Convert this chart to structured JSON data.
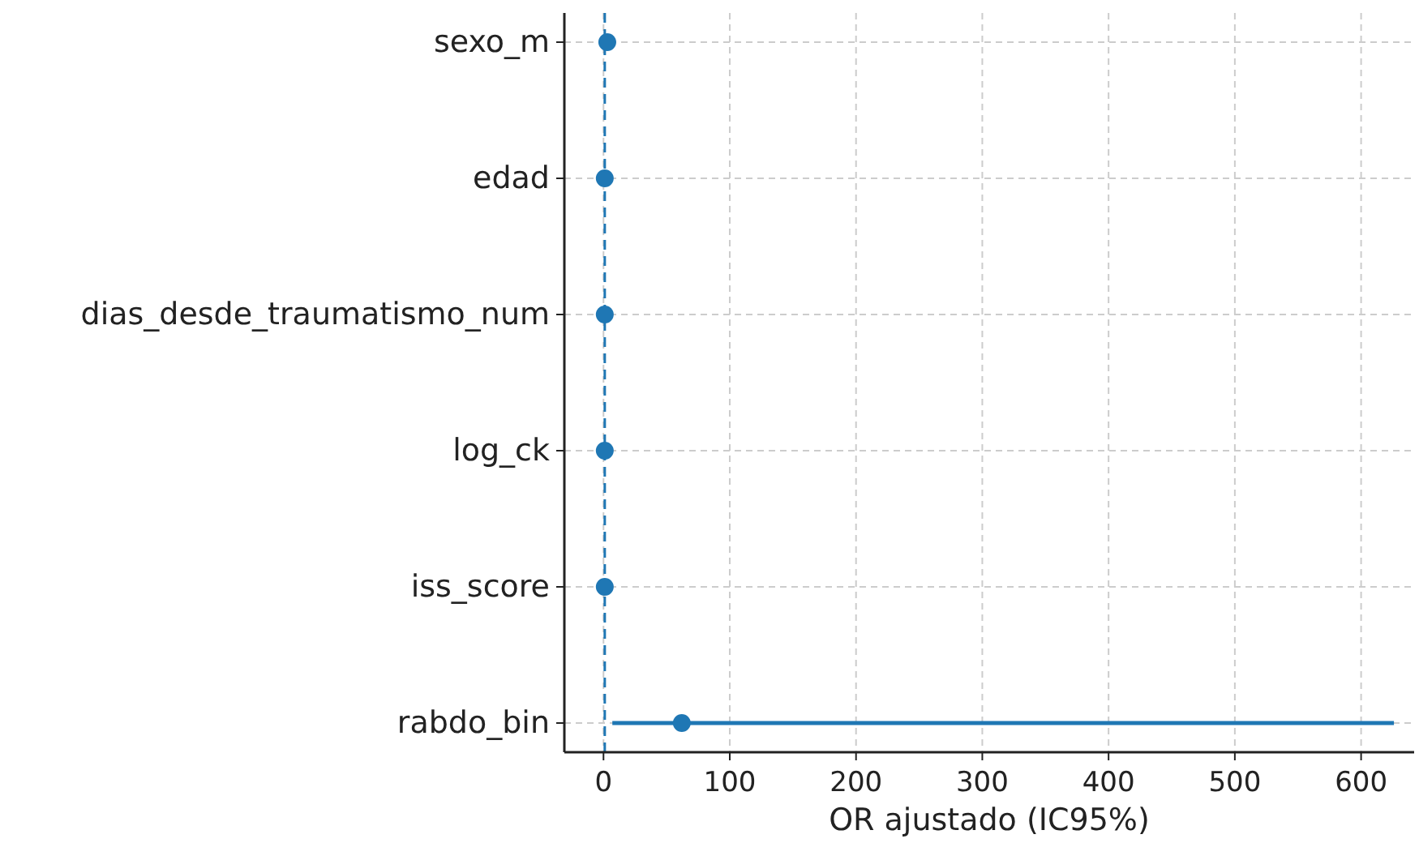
{
  "chart_data": {
    "type": "scatter",
    "orientation": "horizontal",
    "xlabel": "OR ajustado (IC95%)",
    "categories": [
      "sexo_m",
      "edad",
      "dias_desde_traumatismo_num",
      "log_ck",
      "iss_score",
      "rabdo_bin"
    ],
    "series": [
      {
        "color": "#1f77b4",
        "values": [
          3,
          1,
          1,
          1,
          1,
          62
        ],
        "errors": [
          null,
          null,
          null,
          null,
          null,
          [
            7,
            626
          ]
        ]
      }
    ],
    "xlim": [
      -31,
      642
    ],
    "xticks": [
      0,
      100,
      200,
      300,
      400,
      500,
      600
    ],
    "ref_lines": [
      {
        "axis": "x",
        "value": 1,
        "color": "#1f77b4",
        "line_style": "dashed"
      }
    ],
    "grid": true,
    "marker": "circle"
  }
}
